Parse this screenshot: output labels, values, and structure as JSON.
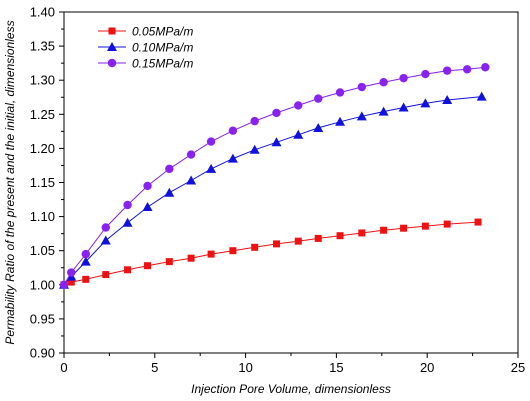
{
  "chart_data": {
    "type": "line",
    "xlabel": "Injection Pore Volume, dimensionless",
    "ylabel": "Permability Ratio of the present and the initial, dimensionless",
    "xlim": [
      0,
      25
    ],
    "ylim": [
      0.9,
      1.4
    ],
    "xticks": [
      0,
      5,
      10,
      15,
      20,
      25
    ],
    "yticks": [
      0.9,
      0.95,
      1.0,
      1.05,
      1.1,
      1.15,
      1.2,
      1.25,
      1.3,
      1.35,
      1.4
    ],
    "grid": false,
    "legend_position": "top-left",
    "series": [
      {
        "name": "0.05MPa/m",
        "color": "#ee1111",
        "marker": "square",
        "x": [
          0,
          0.4,
          1.2,
          2.3,
          3.5,
          4.6,
          5.8,
          7.0,
          8.1,
          9.3,
          10.5,
          11.7,
          12.9,
          14.0,
          15.2,
          16.4,
          17.6,
          18.7,
          19.9,
          21.1,
          22.8
        ],
        "y": [
          1.0,
          1.004,
          1.008,
          1.015,
          1.022,
          1.028,
          1.034,
          1.039,
          1.045,
          1.05,
          1.055,
          1.06,
          1.064,
          1.068,
          1.072,
          1.076,
          1.08,
          1.083,
          1.086,
          1.089,
          1.092
        ]
      },
      {
        "name": "0.10MPa/m",
        "color": "#1111dd",
        "marker": "triangle",
        "x": [
          0,
          0.4,
          1.2,
          2.3,
          3.5,
          4.6,
          5.8,
          7.0,
          8.1,
          9.3,
          10.5,
          11.7,
          12.9,
          14.0,
          15.2,
          16.4,
          17.6,
          18.7,
          19.9,
          21.1,
          23.0
        ],
        "y": [
          1.0,
          1.012,
          1.034,
          1.065,
          1.091,
          1.114,
          1.135,
          1.153,
          1.17,
          1.185,
          1.198,
          1.209,
          1.22,
          1.23,
          1.239,
          1.247,
          1.254,
          1.26,
          1.266,
          1.271,
          1.276
        ]
      },
      {
        "name": "0.15MPa/m",
        "color": "#8822ee",
        "marker": "circle",
        "x": [
          0,
          0.4,
          1.2,
          2.3,
          3.5,
          4.6,
          5.8,
          7.0,
          8.1,
          9.3,
          10.5,
          11.7,
          12.9,
          14.0,
          15.2,
          16.4,
          17.6,
          18.7,
          19.9,
          21.1,
          22.2,
          23.2
        ],
        "y": [
          1.0,
          1.018,
          1.045,
          1.084,
          1.117,
          1.145,
          1.17,
          1.191,
          1.21,
          1.226,
          1.24,
          1.252,
          1.263,
          1.273,
          1.282,
          1.29,
          1.297,
          1.303,
          1.309,
          1.314,
          1.316,
          1.319
        ]
      }
    ]
  }
}
